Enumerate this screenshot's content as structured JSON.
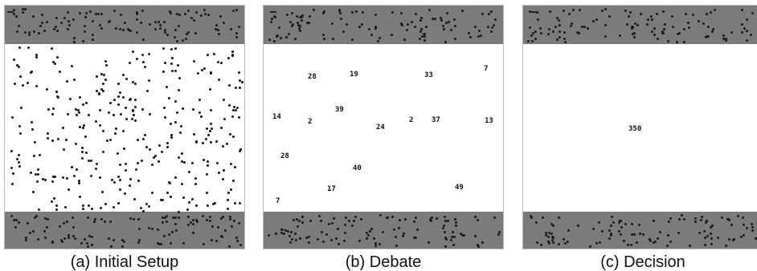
{
  "panels": [
    {
      "id": "a",
      "caption": "(a) Initial Setup",
      "counts": []
    },
    {
      "id": "b",
      "caption": "(b) Debate",
      "counts": [
        "28",
        "19",
        "33",
        "7",
        "14",
        "2",
        "39",
        "24",
        "2",
        "37",
        "13",
        "28",
        "40",
        "17",
        "49",
        "7"
      ]
    },
    {
      "id": "c",
      "caption": "(c) Decision",
      "counts": [
        "350"
      ]
    }
  ],
  "colors": {
    "zone": "#7b7b7b",
    "agent": "#111111",
    "panel_border": "#b7b7b7",
    "background": "#ffffff"
  }
}
